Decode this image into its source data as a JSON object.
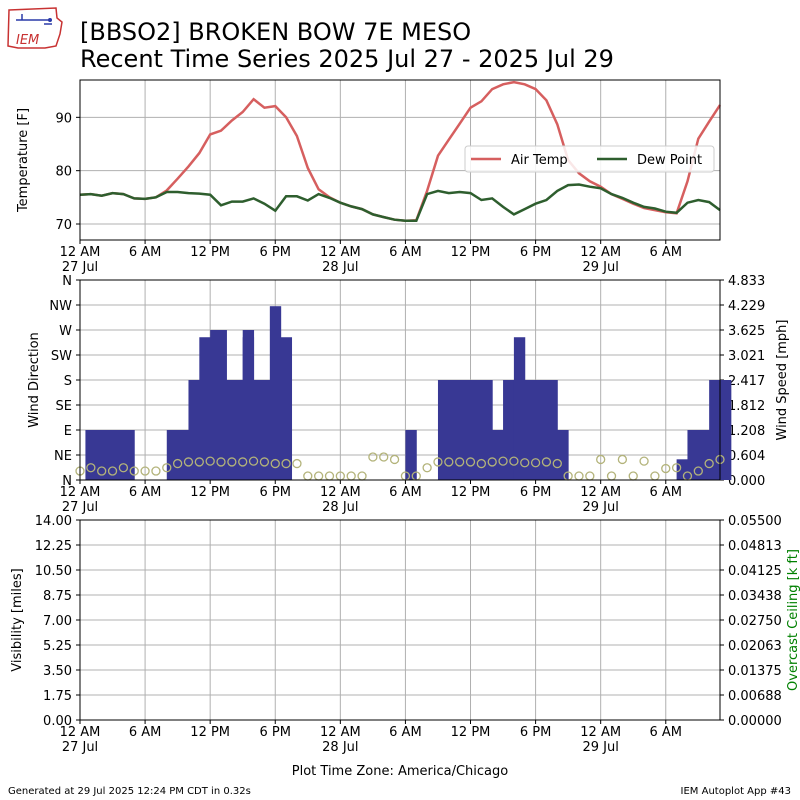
{
  "title_line1": "[BBSO2] BROKEN BOW 7E MESO",
  "title_line2": "Recent Time Series 2025 Jul 27 - 2025 Jul 29",
  "logo_text": "IEM",
  "footer_left": "Generated at 29 Jul 2025 12:24 PM CDT in 0.32s",
  "footer_right": "IEM Autoplot App #43",
  "xaxis_caption": "Plot Time Zone: America/Chicago",
  "x_ticks": [
    {
      "h": 0,
      "label": "12 AM",
      "date": "27 Jul"
    },
    {
      "h": 6,
      "label": "6 AM",
      "date": ""
    },
    {
      "h": 12,
      "label": "12 PM",
      "date": ""
    },
    {
      "h": 18,
      "label": "6 PM",
      "date": ""
    },
    {
      "h": 24,
      "label": "12 AM",
      "date": "28 Jul"
    },
    {
      "h": 30,
      "label": "6 AM",
      "date": ""
    },
    {
      "h": 36,
      "label": "12 PM",
      "date": ""
    },
    {
      "h": 42,
      "label": "6 PM",
      "date": ""
    },
    {
      "h": 48,
      "label": "12 AM",
      "date": "29 Jul"
    },
    {
      "h": 54,
      "label": "6 AM",
      "date": ""
    }
  ],
  "chart_data": [
    {
      "id": "temperature",
      "type": "line",
      "x_unit": "hours since 12 AM 27 Jul",
      "xlim": [
        0,
        59
      ],
      "ylabel": "Temperature [F]",
      "ylim": [
        67,
        97
      ],
      "yticks": [
        70,
        80,
        90
      ],
      "grid": true,
      "legend": "center-right",
      "series": [
        {
          "name": "Air Temp",
          "color": "#d65f5f",
          "points": [
            [
              0,
              75.5
            ],
            [
              1,
              75.6
            ],
            [
              2,
              75.3
            ],
            [
              3,
              75.8
            ],
            [
              4,
              75.6
            ],
            [
              5,
              74.8
            ],
            [
              6,
              74.7
            ],
            [
              7,
              75.0
            ],
            [
              8,
              76.3
            ],
            [
              9,
              78.5
            ],
            [
              10,
              80.8
            ],
            [
              11,
              83.3
            ],
            [
              12,
              86.8
            ],
            [
              13,
              87.5
            ],
            [
              14,
              89.4
            ],
            [
              15,
              91.0
            ],
            [
              16,
              93.4
            ],
            [
              17,
              91.8
            ],
            [
              18,
              92.1
            ],
            [
              19,
              90.0
            ],
            [
              20,
              86.5
            ],
            [
              21,
              80.5
            ],
            [
              22,
              76.5
            ],
            [
              23,
              75.0
            ],
            [
              24,
              74.0
            ],
            [
              25,
              73.3
            ],
            [
              26,
              72.8
            ],
            [
              27,
              71.8
            ],
            [
              28,
              71.3
            ],
            [
              29,
              70.8
            ],
            [
              30,
              70.6
            ],
            [
              31,
              70.7
            ],
            [
              32,
              76.2
            ],
            [
              33,
              82.8
            ],
            [
              34,
              85.8
            ],
            [
              35,
              88.8
            ],
            [
              36,
              91.8
            ],
            [
              37,
              93.0
            ],
            [
              38,
              95.3
            ],
            [
              39,
              96.2
            ],
            [
              40,
              96.6
            ],
            [
              41,
              96.2
            ],
            [
              42,
              95.3
            ],
            [
              43,
              93.2
            ],
            [
              44,
              88.7
            ],
            [
              45,
              82.0
            ],
            [
              46,
              79.5
            ],
            [
              47,
              78.0
            ],
            [
              48,
              77.0
            ],
            [
              49,
              75.6
            ],
            [
              50,
              74.7
            ],
            [
              51,
              73.8
            ],
            [
              52,
              73.0
            ],
            [
              53,
              72.6
            ],
            [
              54,
              72.2
            ],
            [
              55,
              72.0
            ],
            [
              56,
              78.0
            ],
            [
              57,
              86.0
            ],
            [
              58,
              89.2
            ],
            [
              59,
              92.3
            ]
          ]
        },
        {
          "name": "Dew Point",
          "color": "#2e5e2e",
          "points": [
            [
              0,
              75.5
            ],
            [
              1,
              75.6
            ],
            [
              2,
              75.3
            ],
            [
              3,
              75.8
            ],
            [
              4,
              75.6
            ],
            [
              5,
              74.8
            ],
            [
              6,
              74.7
            ],
            [
              7,
              75.0
            ],
            [
              8,
              76.0
            ],
            [
              9,
              76.0
            ],
            [
              10,
              75.8
            ],
            [
              11,
              75.7
            ],
            [
              12,
              75.5
            ],
            [
              13,
              73.5
            ],
            [
              14,
              74.2
            ],
            [
              15,
              74.2
            ],
            [
              16,
              74.8
            ],
            [
              17,
              73.8
            ],
            [
              18,
              72.5
            ],
            [
              19,
              75.2
            ],
            [
              20,
              75.2
            ],
            [
              21,
              74.4
            ],
            [
              22,
              75.6
            ],
            [
              23,
              74.9
            ],
            [
              24,
              74.0
            ],
            [
              25,
              73.3
            ],
            [
              26,
              72.8
            ],
            [
              27,
              71.8
            ],
            [
              28,
              71.3
            ],
            [
              29,
              70.8
            ],
            [
              30,
              70.6
            ],
            [
              31,
              70.6
            ],
            [
              32,
              75.6
            ],
            [
              33,
              76.2
            ],
            [
              34,
              75.8
            ],
            [
              35,
              76.0
            ],
            [
              36,
              75.8
            ],
            [
              37,
              74.5
            ],
            [
              38,
              74.8
            ],
            [
              39,
              73.2
            ],
            [
              40,
              71.8
            ],
            [
              41,
              72.8
            ],
            [
              42,
              73.8
            ],
            [
              43,
              74.5
            ],
            [
              44,
              76.2
            ],
            [
              45,
              77.3
            ],
            [
              46,
              77.4
            ],
            [
              47,
              77.0
            ],
            [
              48,
              76.7
            ],
            [
              49,
              75.6
            ],
            [
              50,
              74.9
            ],
            [
              51,
              74.0
            ],
            [
              52,
              73.2
            ],
            [
              53,
              72.9
            ],
            [
              54,
              72.3
            ],
            [
              55,
              72.1
            ],
            [
              56,
              74.0
            ],
            [
              57,
              74.5
            ],
            [
              58,
              74.1
            ],
            [
              59,
              72.6
            ]
          ]
        }
      ]
    },
    {
      "id": "wind",
      "type": "bar",
      "xlim": [
        0,
        59
      ],
      "ylabel": "Wind Direction",
      "y2label": "Wind Speed [mph]",
      "ytick_labels": [
        "N",
        "NE",
        "E",
        "SE",
        "S",
        "SW",
        "W",
        "NW",
        "N"
      ],
      "ylim": [
        0,
        360
      ],
      "y2ticks": [
        "0.000",
        "0.604",
        "1.208",
        "1.812",
        "2.417",
        "3.021",
        "3.625",
        "4.229",
        "4.833"
      ],
      "y2lim": [
        0,
        4.833
      ],
      "grid": true,
      "series": [
        {
          "name": "Wind Direction",
          "color": "#383894",
          "bars": [
            [
              0.5,
              90
            ],
            [
              1,
              90
            ],
            [
              2,
              90
            ],
            [
              3,
              90
            ],
            [
              4,
              90
            ],
            [
              5,
              0
            ],
            [
              6,
              0
            ],
            [
              7,
              0
            ],
            [
              8,
              90
            ],
            [
              9,
              90
            ],
            [
              10,
              180
            ],
            [
              11,
              180
            ],
            [
              12,
              270
            ],
            [
              12.5,
              270
            ],
            [
              13,
              180
            ],
            [
              14,
              180
            ],
            [
              15,
              270
            ],
            [
              16,
              180
            ],
            [
              17,
              180
            ],
            [
              18,
              180
            ],
            [
              18.5,
              0
            ],
            [
              19,
              0
            ],
            [
              20,
              0
            ],
            [
              21,
              0
            ],
            [
              22,
              0
            ],
            [
              23,
              0
            ],
            [
              24,
              0
            ],
            [
              25,
              0
            ],
            [
              26,
              0
            ],
            [
              27,
              0
            ],
            [
              28,
              0
            ],
            [
              29,
              0
            ],
            [
              30,
              90
            ],
            [
              31,
              0
            ],
            [
              32,
              0
            ],
            [
              33,
              180
            ],
            [
              34,
              180
            ],
            [
              35,
              180
            ],
            [
              36,
              180
            ],
            [
              37,
              180
            ],
            [
              38,
              90
            ],
            [
              39,
              180
            ],
            [
              40,
              180
            ],
            [
              41,
              180
            ],
            [
              42,
              180
            ],
            [
              43,
              180
            ],
            [
              44,
              90
            ],
            [
              45,
              0
            ],
            [
              46,
              0
            ],
            [
              47,
              0
            ],
            [
              48,
              0
            ],
            [
              49,
              0
            ],
            [
              50,
              0
            ],
            [
              51,
              0
            ],
            [
              52,
              0
            ],
            [
              53,
              0
            ],
            [
              54,
              0
            ],
            [
              55,
              0
            ],
            [
              56,
              90
            ],
            [
              57,
              90
            ],
            [
              58,
              180
            ],
            [
              59,
              180
            ]
          ],
          "bar_extra": [
            [
              10.5,
              2.4
            ],
            [
              11,
              3.45
            ],
            [
              15,
              3.45
            ],
            [
              17.5,
              4.2
            ],
            [
              18.5,
              3.45
            ],
            [
              40,
              3.45
            ],
            [
              55,
              0.5
            ]
          ]
        },
        {
          "name": "Wind Speed",
          "color": "#b3b37a",
          "marker": "open-circle",
          "points": [
            [
              0,
              0.12
            ],
            [
              1,
              0.2
            ],
            [
              2,
              0.12
            ],
            [
              3,
              0.12
            ],
            [
              4,
              0.2
            ],
            [
              5,
              0.12
            ],
            [
              6,
              0.12
            ],
            [
              7,
              0.12
            ],
            [
              8,
              0.2
            ],
            [
              9,
              0.3
            ],
            [
              10,
              0.34
            ],
            [
              11,
              0.34
            ],
            [
              12,
              0.36
            ],
            [
              13,
              0.34
            ],
            [
              14,
              0.34
            ],
            [
              15,
              0.34
            ],
            [
              16,
              0.36
            ],
            [
              17,
              0.34
            ],
            [
              18,
              0.3
            ],
            [
              19,
              0.3
            ],
            [
              20,
              0.3
            ],
            [
              21,
              0.0
            ],
            [
              22,
              0.0
            ],
            [
              23,
              0.0
            ],
            [
              24,
              0.0
            ],
            [
              25,
              0.0
            ],
            [
              26,
              0.0
            ],
            [
              27,
              0.46
            ],
            [
              28,
              0.46
            ],
            [
              29,
              0.4
            ],
            [
              30,
              0.0
            ],
            [
              31,
              0.0
            ],
            [
              32,
              0.2
            ],
            [
              33,
              0.34
            ],
            [
              34,
              0.34
            ],
            [
              35,
              0.34
            ],
            [
              36,
              0.34
            ],
            [
              37,
              0.3
            ],
            [
              38,
              0.34
            ],
            [
              39,
              0.36
            ],
            [
              40,
              0.36
            ],
            [
              41,
              0.32
            ],
            [
              42,
              0.32
            ],
            [
              43,
              0.34
            ],
            [
              44,
              0.3
            ],
            [
              45,
              0.0
            ],
            [
              46,
              0.0
            ],
            [
              47,
              0.0
            ],
            [
              48,
              0.4
            ],
            [
              49,
              0.0
            ],
            [
              50,
              0.4
            ],
            [
              51,
              0.0
            ],
            [
              52,
              0.36
            ],
            [
              53,
              0.0
            ],
            [
              54,
              0.18
            ],
            [
              55,
              0.2
            ],
            [
              56,
              0.0
            ],
            [
              57,
              0.12
            ],
            [
              58,
              0.3
            ],
            [
              59,
              0.4
            ]
          ]
        }
      ]
    },
    {
      "id": "visibility",
      "type": "line",
      "xlim": [
        0,
        59
      ],
      "ylabel": "Visibility [miles]",
      "y2label": "Overcast Ceiling [k ft]",
      "y2label_color": "#008000",
      "ylim": [
        0,
        14
      ],
      "yticks": [
        "0.00",
        "1.75",
        "3.50",
        "5.25",
        "7.00",
        "8.75",
        "10.50",
        "12.25",
        "14.00"
      ],
      "y2ticks": [
        "0.00000",
        "0.00688",
        "0.01375",
        "0.02063",
        "0.02750",
        "0.03438",
        "0.04125",
        "0.04813",
        "0.05500"
      ],
      "grid": true,
      "series": []
    }
  ],
  "colors": {
    "grid": "#b0b0b0",
    "axis": "#000000",
    "air_temp": "#d65f5f",
    "dew_point": "#2e5e2e",
    "wind_bar": "#383894",
    "wind_speed": "#b3b37a",
    "ceiling_label": "#008000",
    "logo_red": "#c83232",
    "logo_blue": "#2a3aa8"
  }
}
